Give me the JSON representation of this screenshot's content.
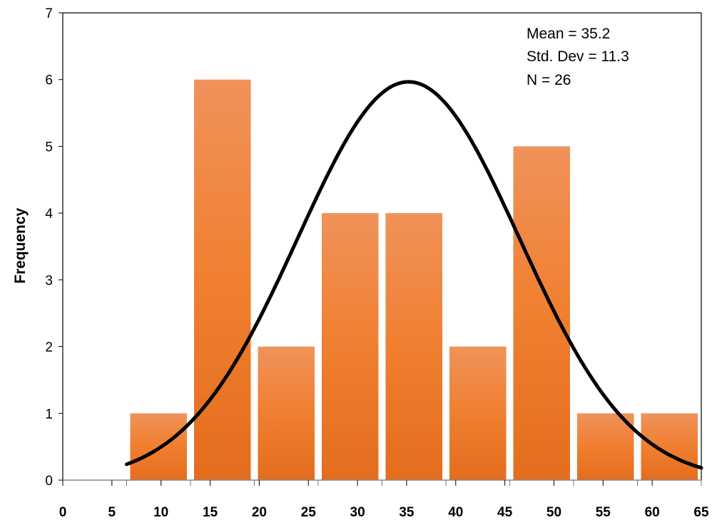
{
  "chart_data": {
    "type": "bar",
    "subtype": "histogram",
    "ylabel": "Frequency",
    "xlabel": "",
    "xlim": [
      0,
      65
    ],
    "ylim": [
      0,
      7
    ],
    "x_ticks": [
      "0",
      "5",
      "10",
      "15",
      "20",
      "25",
      "30",
      "35",
      "40",
      "45",
      "50",
      "55",
      "60",
      "65"
    ],
    "y_ticks": [
      "0",
      "1",
      "2",
      "3",
      "4",
      "5",
      "6",
      "7"
    ],
    "bin_edges": [
      6.5,
      13,
      19.5,
      26,
      32.5,
      39,
      45.5,
      52,
      58.5,
      65
    ],
    "values": [
      1,
      6,
      2,
      4,
      4,
      2,
      5,
      1,
      1
    ],
    "bar_color": "#ee7d31",
    "grid": false,
    "stats": {
      "mean": "Mean = 35.2",
      "std": "Std. Dev = 11.3",
      "n": "N = 26"
    },
    "normal_curve": {
      "mean": 35.2,
      "std_dev": 11.3,
      "n": 26,
      "bin_width": 6.5,
      "x_range": [
        6.5,
        65
      ],
      "color": "#000000"
    }
  }
}
